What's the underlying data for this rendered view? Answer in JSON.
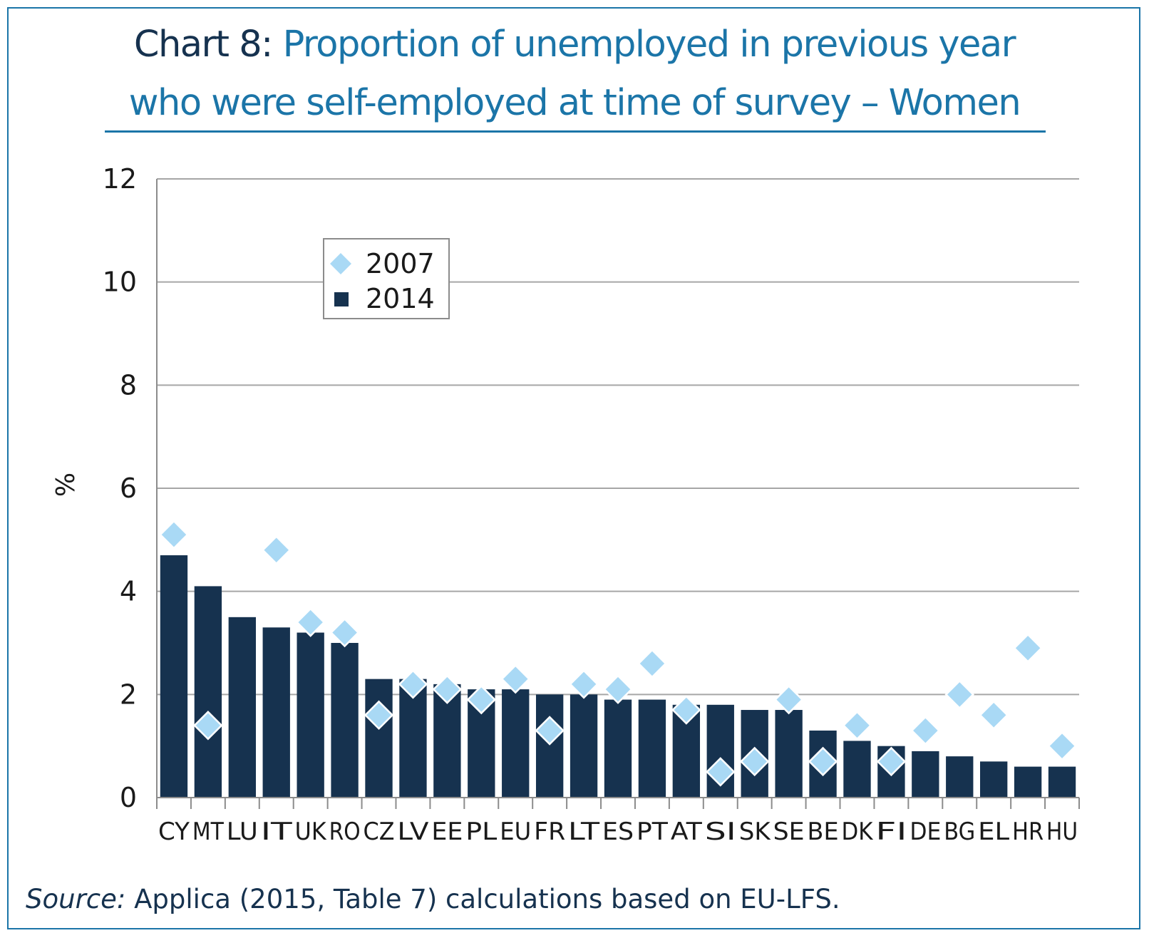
{
  "title": {
    "prefix": "Chart 8:",
    "line1": "Proportion of unemployed in previous year",
    "line2": "who were self-employed at time of survey – Women"
  },
  "source": {
    "label": "Source:",
    "text": " Applica (2015, Table 7) calculations based on EU-LFS."
  },
  "colors": {
    "bar_2014": "#16324f",
    "marker_2007": "#a9d9f5",
    "title": "#1b75a8",
    "frame": "#1b75a8",
    "grid": "#a6a6a6"
  },
  "chart_data": {
    "type": "bar",
    "ylabel": "%",
    "ylim": [
      0,
      12
    ],
    "yticks": [
      0,
      2,
      4,
      6,
      8,
      10,
      12
    ],
    "grid": true,
    "legend_position": "top-left",
    "categories": [
      "CY",
      "MT",
      "LU",
      "IT",
      "UK",
      "RO",
      "CZ",
      "LV",
      "EE",
      "PL",
      "EU",
      "FR",
      "LT",
      "ES",
      "PT",
      "AT",
      "SI",
      "SK",
      "SE",
      "BE",
      "DK",
      "FI",
      "DE",
      "BG",
      "EL",
      "HR",
      "HU"
    ],
    "series": [
      {
        "name": "2014",
        "kind": "bar",
        "values": [
          4.7,
          4.1,
          3.5,
          3.3,
          3.2,
          3.0,
          2.3,
          2.3,
          2.2,
          2.1,
          2.1,
          2.0,
          2.0,
          1.9,
          1.9,
          1.8,
          1.8,
          1.7,
          1.7,
          1.3,
          1.1,
          1.0,
          0.9,
          0.8,
          0.7,
          0.6,
          0.6
        ]
      },
      {
        "name": "2007",
        "kind": "marker",
        "values": [
          5.1,
          1.4,
          null,
          4.8,
          3.4,
          3.2,
          1.6,
          2.2,
          2.1,
          1.9,
          2.3,
          1.3,
          2.2,
          2.1,
          2.6,
          1.7,
          0.5,
          0.7,
          1.9,
          0.7,
          1.4,
          0.7,
          1.3,
          2.0,
          1.6,
          2.9,
          1.0
        ]
      }
    ]
  }
}
